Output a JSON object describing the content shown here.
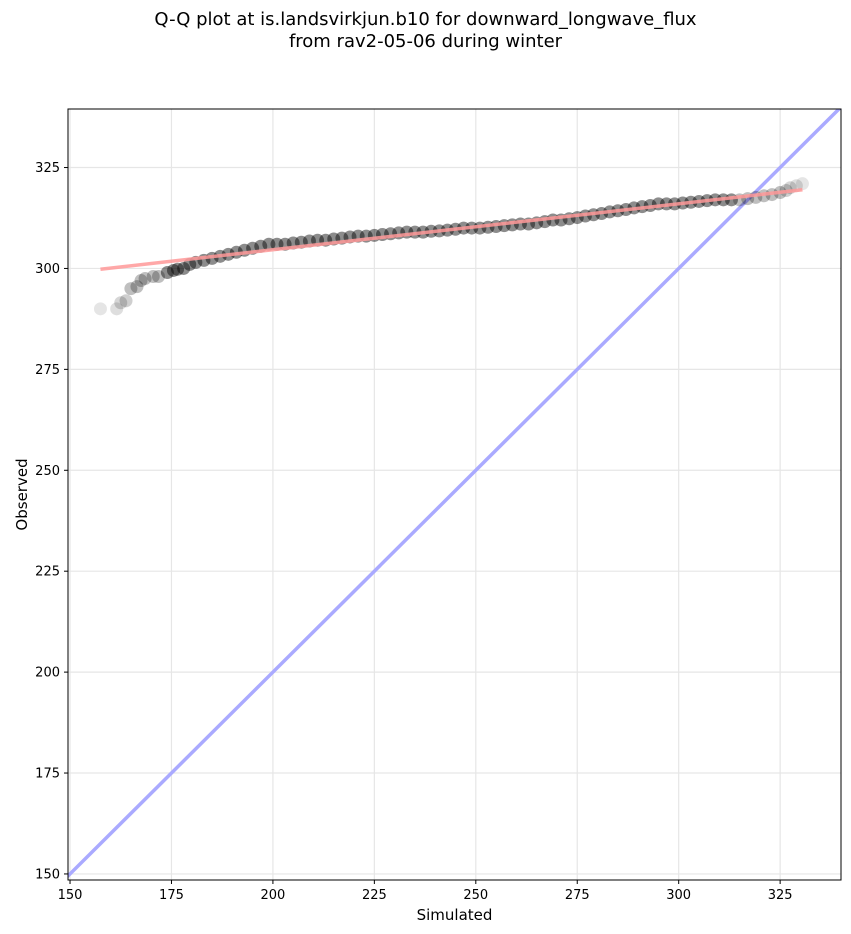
{
  "chart_data": {
    "type": "scatter",
    "title_lines": [
      "Q-Q plot at is.landsvirkjun.b10 for downward_longwave_flux",
      "from rav2-05-06 during winter"
    ],
    "xlabel": "Simulated",
    "ylabel": "Observed",
    "xlim": [
      149.5,
      340
    ],
    "ylim": [
      148.5,
      339.5
    ],
    "xticks": [
      150,
      175,
      200,
      225,
      250,
      275,
      300,
      325
    ],
    "yticks": [
      150,
      175,
      200,
      225,
      250,
      275,
      300,
      325
    ],
    "grid": true,
    "quantiles": [
      [
        157.5,
        290
      ],
      [
        161.5,
        290
      ],
      [
        162.5,
        291.5
      ],
      [
        163.8,
        292
      ],
      [
        165,
        295
      ],
      [
        166.5,
        295.5
      ],
      [
        167.5,
        297
      ],
      [
        168.5,
        297.5
      ],
      [
        170.5,
        298
      ],
      [
        171.8,
        298
      ],
      [
        174,
        299
      ],
      [
        175.5,
        299.5
      ],
      [
        176.5,
        299.8
      ],
      [
        178,
        300
      ],
      [
        179.5,
        301
      ],
      [
        181,
        301.5
      ],
      [
        183,
        302
      ],
      [
        185,
        302.5
      ],
      [
        187,
        303
      ],
      [
        189,
        303.5
      ],
      [
        191,
        304
      ],
      [
        193,
        304.5
      ],
      [
        195,
        305
      ],
      [
        197,
        305.5
      ],
      [
        199,
        306
      ],
      [
        201,
        306
      ],
      [
        203,
        306
      ],
      [
        205,
        306.3
      ],
      [
        207,
        306.5
      ],
      [
        209,
        306.8
      ],
      [
        211,
        307
      ],
      [
        213,
        307
      ],
      [
        215,
        307.3
      ],
      [
        217,
        307.5
      ],
      [
        219,
        307.8
      ],
      [
        221,
        308
      ],
      [
        223,
        308
      ],
      [
        225,
        308.2
      ],
      [
        227,
        308.4
      ],
      [
        229,
        308.6
      ],
      [
        231,
        308.8
      ],
      [
        233,
        309
      ],
      [
        235,
        309
      ],
      [
        237,
        309
      ],
      [
        239,
        309.2
      ],
      [
        241,
        309.3
      ],
      [
        243,
        309.5
      ],
      [
        245,
        309.7
      ],
      [
        247,
        310
      ],
      [
        249,
        310
      ],
      [
        251,
        310
      ],
      [
        253,
        310.2
      ],
      [
        255,
        310.4
      ],
      [
        257,
        310.6
      ],
      [
        259,
        310.8
      ],
      [
        261,
        311
      ],
      [
        263,
        311
      ],
      [
        265,
        311.3
      ],
      [
        267,
        311.6
      ],
      [
        269,
        312
      ],
      [
        271,
        312
      ],
      [
        273,
        312.3
      ],
      [
        275,
        312.6
      ],
      [
        277,
        313
      ],
      [
        279,
        313.3
      ],
      [
        281,
        313.6
      ],
      [
        283,
        314
      ],
      [
        285,
        314.3
      ],
      [
        287,
        314.6
      ],
      [
        289,
        315
      ],
      [
        291,
        315.3
      ],
      [
        293,
        315.6
      ],
      [
        295,
        316
      ],
      [
        297,
        316
      ],
      [
        299,
        316
      ],
      [
        301,
        316.2
      ],
      [
        303,
        316.4
      ],
      [
        305,
        316.6
      ],
      [
        307,
        316.8
      ],
      [
        309,
        317
      ],
      [
        311,
        317
      ],
      [
        313,
        317
      ],
      [
        315,
        317
      ],
      [
        317,
        317.3
      ],
      [
        319,
        317.6
      ],
      [
        321,
        318
      ],
      [
        323,
        318.3
      ],
      [
        325,
        318.8
      ],
      [
        326.5,
        319.3
      ],
      [
        327.5,
        320
      ],
      [
        329,
        320.5
      ],
      [
        330.5,
        321
      ]
    ],
    "fit_line": {
      "x": [
        157.5,
        330.5
      ],
      "y": [
        299.8,
        319.5
      ],
      "color": "#ff9999"
    },
    "identity_line": {
      "color": "#aaaaff"
    },
    "marker_color": "#000000"
  }
}
